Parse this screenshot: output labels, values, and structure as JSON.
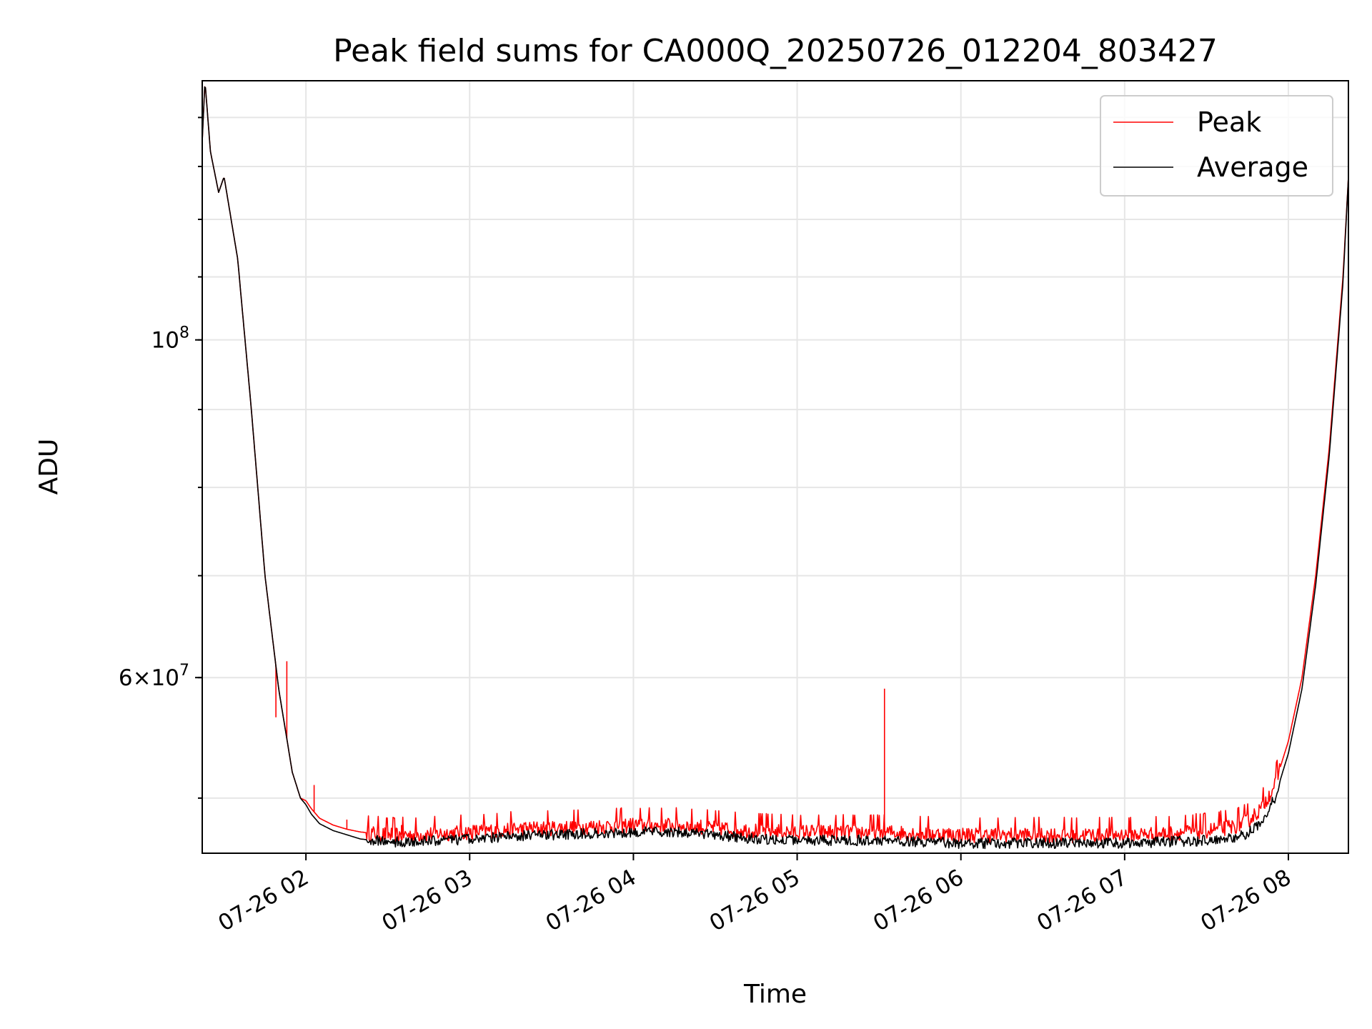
{
  "chart_data": {
    "type": "line",
    "title": "Peak field sums for CA000Q_20250726_012204_803427",
    "xlabel": "Time",
    "ylabel": "ADU",
    "x_tick_labels": [
      "07-26 02",
      "07-26 03",
      "07-26 04",
      "07-26 05",
      "07-26 06",
      "07-26 07",
      "07-26 08"
    ],
    "y_tick_labels": [
      {
        "value": 100000000,
        "base": "10",
        "exp": "8"
      },
      {
        "value": 60000000,
        "coef": "6",
        "base": "10",
        "exp": "7"
      }
    ],
    "x_range": [
      "07-26 01:22",
      "07-26 08:22"
    ],
    "ylim": [
      46000000,
      148000000
    ],
    "y_scale": "log",
    "grid": true,
    "legend_position": "top-right",
    "series": [
      {
        "name": "Peak",
        "color": "#ff0000",
        "x": [
          "01:22",
          "01:23",
          "01:25",
          "01:28",
          "01:30",
          "01:35",
          "01:40",
          "01:45",
          "01:50",
          "01:55",
          "01:58",
          "02:00",
          "02:02",
          "02:05",
          "02:10",
          "02:15",
          "02:20",
          "02:30",
          "02:40",
          "02:50",
          "03:00",
          "03:15",
          "03:30",
          "03:45",
          "04:00",
          "04:15",
          "04:30",
          "04:45",
          "05:00",
          "05:15",
          "05:30",
          "05:45",
          "06:00",
          "06:15",
          "06:30",
          "06:45",
          "07:00",
          "07:15",
          "07:30",
          "07:40",
          "07:45",
          "07:50",
          "07:55",
          "08:00",
          "08:05",
          "08:10",
          "08:15",
          "08:20",
          "08:22"
        ],
        "values": [
          135000000,
          148000000,
          133000000,
          125000000,
          128000000,
          113000000,
          90000000,
          70000000,
          59000000,
          52000000,
          50000000,
          49800000,
          49200000,
          48500000,
          48000000,
          47700000,
          47500000,
          47300000,
          47300000,
          47400000,
          47500000,
          47700000,
          47800000,
          47900000,
          48000000,
          48000000,
          47800000,
          47600000,
          47500000,
          47500000,
          47500000,
          47400000,
          47300000,
          47300000,
          47300000,
          47300000,
          47300000,
          47400000,
          47600000,
          47900000,
          48300000,
          49200000,
          51000000,
          54500000,
          60000000,
          70000000,
          85000000,
          110000000,
          128000000
        ],
        "spikes": [
          {
            "x": "01:53",
            "value": 61500000
          },
          {
            "x": "05:32",
            "value": 59000000
          },
          {
            "x": "02:03",
            "value": 51000000
          },
          {
            "x": "01:49",
            "value": 56500000
          },
          {
            "x": "02:15",
            "value": 48400000
          },
          {
            "x": "02:35",
            "value": 48000000
          }
        ]
      },
      {
        "name": "Average",
        "color": "#000000",
        "x": [
          "01:22",
          "01:23",
          "01:25",
          "01:28",
          "01:30",
          "01:35",
          "01:40",
          "01:45",
          "01:50",
          "01:55",
          "01:58",
          "02:00",
          "02:02",
          "02:05",
          "02:10",
          "02:15",
          "02:20",
          "02:30",
          "02:40",
          "02:50",
          "03:00",
          "03:15",
          "03:30",
          "03:45",
          "04:00",
          "04:15",
          "04:30",
          "04:45",
          "05:00",
          "05:15",
          "05:30",
          "05:45",
          "06:00",
          "06:15",
          "06:30",
          "06:45",
          "07:00",
          "07:15",
          "07:30",
          "07:40",
          "07:45",
          "07:50",
          "07:55",
          "08:00",
          "08:05",
          "08:10",
          "08:15",
          "08:20",
          "08:22"
        ],
        "values": [
          135000000,
          148000000,
          133000000,
          125000000,
          128000000,
          113000000,
          90000000,
          70000000,
          59000000,
          52000000,
          50000000,
          49500000,
          48800000,
          48100000,
          47600000,
          47300000,
          47000000,
          46800000,
          46800000,
          46900000,
          47000000,
          47200000,
          47300000,
          47400000,
          47500000,
          47500000,
          47300000,
          47000000,
          46900000,
          46900000,
          46900000,
          46800000,
          46700000,
          46700000,
          46700000,
          46700000,
          46700000,
          46800000,
          46900000,
          47100000,
          47400000,
          48200000,
          50000000,
          53500000,
          59000000,
          69000000,
          84000000,
          109000000,
          128000000
        ]
      }
    ]
  }
}
